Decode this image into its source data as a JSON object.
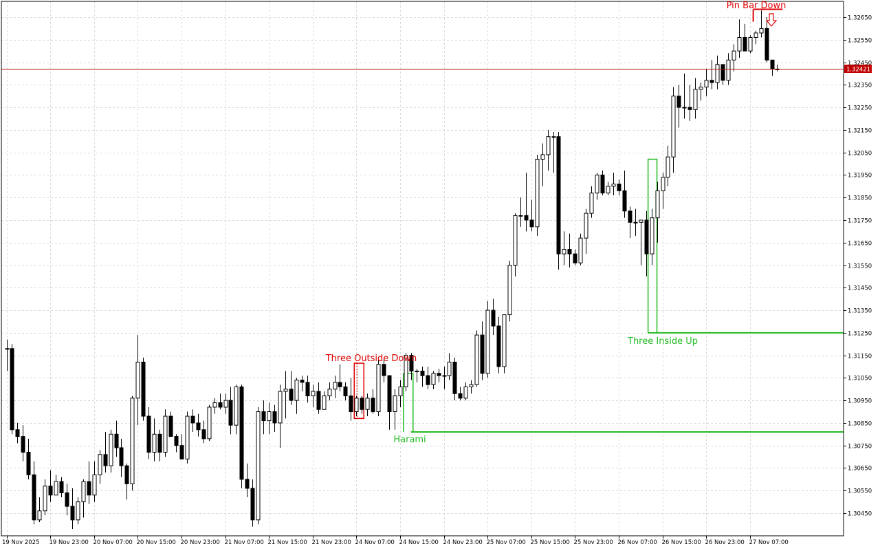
{
  "chart": {
    "symbol_interval": "GBPUSD H1",
    "colors": {
      "background": "#ffffff",
      "grid": "#d9d9d9",
      "candle": "#000000",
      "bull_body": "#ffffff",
      "bear_body": "#000000",
      "price_line": "#c00000",
      "price_tag_bg": "#c00000",
      "bearish_pattern": "#e00000",
      "bullish_pattern": "#22bb22"
    },
    "current_price": "1.32421",
    "y_ticks": [
      "1.32650",
      "1.32550",
      "1.32450",
      "1.32350",
      "1.32250",
      "1.32150",
      "1.32050",
      "1.31950",
      "1.31850",
      "1.31750",
      "1.31650",
      "1.31550",
      "1.31450",
      "1.31350",
      "1.31250",
      "1.31150",
      "1.31050",
      "1.30950",
      "1.30850",
      "1.30750",
      "1.30650",
      "1.30550",
      "1.30450"
    ],
    "x_ticks": [
      "19 Nov 2025",
      "19 Nov 23:00",
      "20 Nov 07:00",
      "20 Nov 15:00",
      "20 Nov 23:00",
      "21 Nov 07:00",
      "21 Nov 15:00",
      "21 Nov 23:00",
      "24 Nov 07:00",
      "24 Nov 15:00",
      "24 Nov 23:00",
      "25 Nov 07:00",
      "25 Nov 15:00",
      "25 Nov 23:00",
      "26 Nov 07:00",
      "26 Nov 15:00",
      "26 Nov 23:00",
      "27 Nov 07:00"
    ],
    "patterns": [
      {
        "label": "Pin Bar Down",
        "kind": "bearish"
      },
      {
        "label": "Three Outside Down",
        "kind": "bearish"
      },
      {
        "label": "Three Inside Up",
        "kind": "bullish"
      },
      {
        "label": "Harami",
        "kind": "bullish"
      }
    ]
  },
  "chart_data": {
    "type": "candlestick",
    "title": "",
    "ylim": [
      1.304,
      1.327
    ],
    "current_price": 1.32421,
    "ohlc": [
      [
        1.3118,
        1.3122,
        1.3108,
        1.3118
      ],
      [
        1.3118,
        1.312,
        1.308,
        1.3082
      ],
      [
        1.3082,
        1.3085,
        1.3076,
        1.3079
      ],
      [
        1.3079,
        1.3084,
        1.3068,
        1.3072
      ],
      [
        1.3072,
        1.3078,
        1.306,
        1.3062
      ],
      [
        1.3062,
        1.3068,
        1.304,
        1.3042
      ],
      [
        1.3042,
        1.3052,
        1.3041,
        1.3046
      ],
      [
        1.3046,
        1.306,
        1.3044,
        1.3057
      ],
      [
        1.3057,
        1.3064,
        1.305,
        1.3053
      ],
      [
        1.3053,
        1.3062,
        1.3053,
        1.3059
      ],
      [
        1.3059,
        1.3061,
        1.3052,
        1.3054
      ],
      [
        1.3054,
        1.3058,
        1.3044,
        1.3048
      ],
      [
        1.3048,
        1.3056,
        1.3038,
        1.3042
      ],
      [
        1.3042,
        1.3052,
        1.304,
        1.305
      ],
      [
        1.305,
        1.306,
        1.3043,
        1.3059
      ],
      [
        1.3059,
        1.3068,
        1.3049,
        1.3053
      ],
      [
        1.3053,
        1.3068,
        1.305,
        1.3062
      ],
      [
        1.3062,
        1.3073,
        1.3058,
        1.3071
      ],
      [
        1.3071,
        1.3081,
        1.3063,
        1.3066
      ],
      [
        1.3066,
        1.3082,
        1.3063,
        1.308
      ],
      [
        1.308,
        1.3086,
        1.307,
        1.3074
      ],
      [
        1.3074,
        1.3078,
        1.3061,
        1.3066
      ],
      [
        1.3066,
        1.3067,
        1.3051,
        1.3058
      ],
      [
        1.3058,
        1.3097,
        1.3055,
        1.3096
      ],
      [
        1.3096,
        1.3124,
        1.3084,
        1.3112
      ],
      [
        1.3112,
        1.3114,
        1.3086,
        1.3088
      ],
      [
        1.3088,
        1.3092,
        1.3069,
        1.3072
      ],
      [
        1.3072,
        1.3087,
        1.3068,
        1.308
      ],
      [
        1.308,
        1.3082,
        1.3068,
        1.3072
      ],
      [
        1.3072,
        1.3091,
        1.307,
        1.3088
      ],
      [
        1.3088,
        1.309,
        1.3079,
        1.3079
      ],
      [
        1.3079,
        1.308,
        1.3072,
        1.3075
      ],
      [
        1.3075,
        1.308,
        1.3069,
        1.3069
      ],
      [
        1.3069,
        1.309,
        1.3067,
        1.3088
      ],
      [
        1.3088,
        1.3091,
        1.3081,
        1.3085
      ],
      [
        1.3085,
        1.3089,
        1.3079,
        1.3082
      ],
      [
        1.3082,
        1.3086,
        1.3076,
        1.3078
      ],
      [
        1.3078,
        1.3093,
        1.3077,
        1.3092
      ],
      [
        1.3092,
        1.3096,
        1.3089,
        1.3094
      ],
      [
        1.3094,
        1.3098,
        1.3091,
        1.3092
      ],
      [
        1.3092,
        1.3098,
        1.3089,
        1.3095
      ],
      [
        1.3095,
        1.3101,
        1.308,
        1.3084
      ],
      [
        1.3084,
        1.3102,
        1.308,
        1.3101
      ],
      [
        1.3101,
        1.3102,
        1.3056,
        1.306
      ],
      [
        1.306,
        1.3067,
        1.3052,
        1.3056
      ],
      [
        1.3056,
        1.306,
        1.3039,
        1.3042
      ],
      [
        1.3042,
        1.3092,
        1.304,
        1.309
      ],
      [
        1.309,
        1.3095,
        1.308,
        1.3086
      ],
      [
        1.3086,
        1.3094,
        1.308,
        1.309
      ],
      [
        1.309,
        1.3093,
        1.3081,
        1.3085
      ],
      [
        1.3085,
        1.3102,
        1.3074,
        1.3099
      ],
      [
        1.3099,
        1.3108,
        1.3087,
        1.31
      ],
      [
        1.31,
        1.3108,
        1.3093,
        1.3095
      ],
      [
        1.3095,
        1.3105,
        1.3089,
        1.3104
      ],
      [
        1.3104,
        1.3106,
        1.3099,
        1.3103
      ],
      [
        1.3103,
        1.3106,
        1.3094,
        1.3097
      ],
      [
        1.3097,
        1.3102,
        1.3092,
        1.3099
      ],
      [
        1.3099,
        1.3103,
        1.3089,
        1.3091
      ],
      [
        1.3091,
        1.3099,
        1.3091,
        1.3097
      ],
      [
        1.3097,
        1.3103,
        1.3095,
        1.31
      ],
      [
        1.31,
        1.3106,
        1.3096,
        1.3103
      ],
      [
        1.3103,
        1.3111,
        1.3099,
        1.3101
      ],
      [
        1.3101,
        1.3103,
        1.3095,
        1.3097
      ],
      [
        1.3097,
        1.3105,
        1.3086,
        1.309
      ],
      [
        1.309,
        1.3097,
        1.3088,
        1.3096
      ],
      [
        1.3096,
        1.3097,
        1.3089,
        1.3091
      ],
      [
        1.3091,
        1.3098,
        1.3088,
        1.3096
      ],
      [
        1.3096,
        1.31,
        1.3089,
        1.309
      ],
      [
        1.309,
        1.3113,
        1.3088,
        1.3111
      ],
      [
        1.3111,
        1.3114,
        1.3103,
        1.3106
      ],
      [
        1.3106,
        1.3106,
        1.3082,
        1.309
      ],
      [
        1.309,
        1.31,
        1.3082,
        1.3097
      ],
      [
        1.3097,
        1.3104,
        1.3092,
        1.3101
      ],
      [
        1.3101,
        1.3116,
        1.3099,
        1.3115
      ],
      [
        1.3115,
        1.3116,
        1.3104,
        1.3108
      ],
      [
        1.3108,
        1.3109,
        1.3103,
        1.3108
      ],
      [
        1.3108,
        1.311,
        1.3101,
        1.3106
      ],
      [
        1.3106,
        1.311,
        1.31,
        1.3102
      ],
      [
        1.3102,
        1.3108,
        1.31,
        1.3107
      ],
      [
        1.3107,
        1.3109,
        1.3103,
        1.3106
      ],
      [
        1.3106,
        1.311,
        1.31,
        1.3106
      ],
      [
        1.3106,
        1.3116,
        1.3104,
        1.3112
      ],
      [
        1.3112,
        1.3114,
        1.3095,
        1.3098
      ],
      [
        1.3098,
        1.3101,
        1.3095,
        1.3096
      ],
      [
        1.3096,
        1.3103,
        1.3095,
        1.3101
      ],
      [
        1.3101,
        1.3104,
        1.3098,
        1.3102
      ],
      [
        1.3102,
        1.3126,
        1.3101,
        1.3124
      ],
      [
        1.3124,
        1.313,
        1.3104,
        1.3107
      ],
      [
        1.3107,
        1.3139,
        1.3105,
        1.3135
      ],
      [
        1.3135,
        1.314,
        1.3124,
        1.3128
      ],
      [
        1.3128,
        1.3132,
        1.3107,
        1.311
      ],
      [
        1.311,
        1.3133,
        1.3107,
        1.3133
      ],
      [
        1.3133,
        1.3157,
        1.313,
        1.3155
      ],
      [
        1.3155,
        1.3178,
        1.315,
        1.3177
      ],
      [
        1.3177,
        1.3185,
        1.3172,
        1.3177
      ],
      [
        1.3177,
        1.3196,
        1.317,
        1.3175
      ],
      [
        1.3175,
        1.3184,
        1.317,
        1.3172
      ],
      [
        1.3172,
        1.3204,
        1.3168,
        1.3202
      ],
      [
        1.3202,
        1.3209,
        1.319,
        1.3204
      ],
      [
        1.3204,
        1.3215,
        1.3197,
        1.3212
      ],
      [
        1.3212,
        1.3214,
        1.3196,
        1.3212
      ],
      [
        1.3212,
        1.3214,
        1.3153,
        1.316
      ],
      [
        1.316,
        1.317,
        1.3155,
        1.3162
      ],
      [
        1.3162,
        1.3169,
        1.3154,
        1.316
      ],
      [
        1.316,
        1.3162,
        1.3155,
        1.3156
      ],
      [
        1.3156,
        1.3169,
        1.3155,
        1.3167
      ],
      [
        1.3167,
        1.318,
        1.316,
        1.3178
      ],
      [
        1.3178,
        1.319,
        1.3176,
        1.3187
      ],
      [
        1.3187,
        1.3196,
        1.3184,
        1.3195
      ],
      [
        1.3195,
        1.3197,
        1.3186,
        1.3187
      ],
      [
        1.3187,
        1.3192,
        1.3186,
        1.319
      ],
      [
        1.319,
        1.3196,
        1.3186,
        1.3191
      ],
      [
        1.3191,
        1.3193,
        1.3186,
        1.3188
      ],
      [
        1.3188,
        1.3197,
        1.3176,
        1.3179
      ],
      [
        1.3179,
        1.3181,
        1.3167,
        1.3174
      ],
      [
        1.3174,
        1.318,
        1.3168,
        1.3174
      ],
      [
        1.3174,
        1.3175,
        1.3155,
        1.3175
      ],
      [
        1.3175,
        1.3179,
        1.315,
        1.316
      ],
      [
        1.316,
        1.318,
        1.3155,
        1.3176
      ],
      [
        1.3176,
        1.3192,
        1.3165,
        1.3188
      ],
      [
        1.3188,
        1.3196,
        1.318,
        1.3194
      ],
      [
        1.3194,
        1.3208,
        1.319,
        1.3203
      ],
      [
        1.3203,
        1.3234,
        1.3196,
        1.323
      ],
      [
        1.323,
        1.3235,
        1.3216,
        1.3225
      ],
      [
        1.3225,
        1.324,
        1.322,
        1.3225
      ],
      [
        1.3225,
        1.3235,
        1.3219,
        1.3224
      ],
      [
        1.3224,
        1.3238,
        1.322,
        1.3233
      ],
      [
        1.3233,
        1.3236,
        1.3228,
        1.3234
      ],
      [
        1.3234,
        1.3242,
        1.323,
        1.3237
      ],
      [
        1.3237,
        1.3246,
        1.3233,
        1.3236
      ],
      [
        1.3236,
        1.3248,
        1.3233,
        1.3244
      ],
      [
        1.3244,
        1.3244,
        1.3235,
        1.3237
      ],
      [
        1.3237,
        1.3249,
        1.3235,
        1.3246
      ],
      [
        1.3246,
        1.3253,
        1.3241,
        1.325
      ],
      [
        1.325,
        1.3264,
        1.3247,
        1.3256
      ],
      [
        1.3256,
        1.3262,
        1.325,
        1.325
      ],
      [
        1.325,
        1.3257,
        1.3249,
        1.3256
      ],
      [
        1.3256,
        1.3259,
        1.3253,
        1.3258
      ],
      [
        1.3258,
        1.3268,
        1.3256,
        1.326
      ],
      [
        1.326,
        1.3265,
        1.3245,
        1.3246
      ],
      [
        1.3246,
        1.3246,
        1.3239,
        1.3242
      ],
      [
        1.3242,
        1.3244,
        1.3241,
        1.3242
      ]
    ]
  }
}
